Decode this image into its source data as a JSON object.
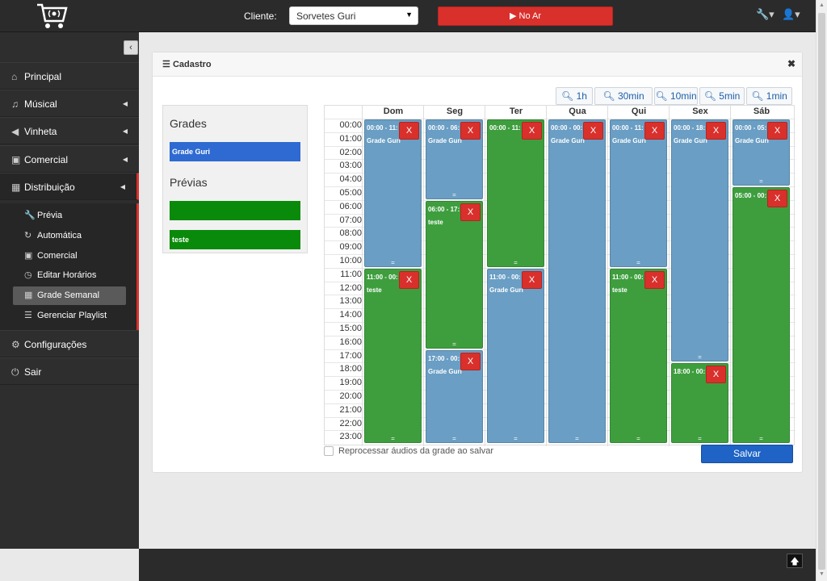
{
  "header": {
    "cliente_label": "Cliente:",
    "cliente_value": "Sorvetes Guri",
    "noar_label": "▶ No Ar"
  },
  "sidebar": {
    "items": [
      {
        "label": "Principal",
        "icon": "home-icon"
      },
      {
        "label": "Músical",
        "icon": "music-icon"
      },
      {
        "label": "Vinheta",
        "icon": "megaphone-icon"
      },
      {
        "label": "Comercial",
        "icon": "money-icon"
      },
      {
        "label": "Distribuição",
        "icon": "calendar-icon"
      },
      {
        "label": "Configurações",
        "icon": "gears-icon"
      },
      {
        "label": "Sair",
        "icon": "power-icon"
      }
    ],
    "subitems": [
      {
        "label": "Prévia",
        "icon": "wrench-icon"
      },
      {
        "label": "Automática",
        "icon": "refresh-icon"
      },
      {
        "label": "Comercial",
        "icon": "money-icon"
      },
      {
        "label": "Editar Horários",
        "icon": "clock-icon"
      },
      {
        "label": "Grade Semanal",
        "icon": "calendar-icon"
      },
      {
        "label": "Gerenciar Playlist",
        "icon": "list-icon"
      }
    ]
  },
  "panel": {
    "title": "Cadastro",
    "zoom_buttons": [
      "1h",
      "30min",
      "10min",
      "5min",
      "1min"
    ],
    "grades_title": "Grades",
    "grades": [
      {
        "label": "Grade Guri",
        "color": "#2e6ad1"
      }
    ],
    "previas_title": "Prévias",
    "previas": [
      {
        "label": "",
        "color": "#0a8a0a"
      },
      {
        "label": "teste",
        "color": "#0a8a0a"
      }
    ],
    "days": [
      "Dom",
      "Seg",
      "Ter",
      "Qua",
      "Qui",
      "Sex",
      "Sáb"
    ],
    "hours": [
      "00:00",
      "01:00",
      "02:00",
      "03:00",
      "04:00",
      "05:00",
      "06:00",
      "07:00",
      "08:00",
      "09:00",
      "10:00",
      "11:00",
      "12:00",
      "13:00",
      "14:00",
      "15:00",
      "16:00",
      "17:00",
      "18:00",
      "19:00",
      "20:00",
      "21:00",
      "22:00",
      "23:00"
    ],
    "blocks": [
      {
        "day": 0,
        "start": 0,
        "end": 11,
        "color": "blue",
        "time": "00:00 - 11:",
        "name": "Grade Guri"
      },
      {
        "day": 0,
        "start": 11,
        "end": 24,
        "color": "green",
        "time": "11:00 - 00:",
        "name": "teste"
      },
      {
        "day": 1,
        "start": 0,
        "end": 6,
        "color": "blue",
        "time": "00:00 - 06:",
        "name": "Grade Guri"
      },
      {
        "day": 1,
        "start": 6,
        "end": 17,
        "color": "green",
        "time": "06:00 - 17:",
        "name": "teste"
      },
      {
        "day": 1,
        "start": 17,
        "end": 24,
        "color": "blue",
        "time": "17:00 - 00:",
        "name": "Grade Guri"
      },
      {
        "day": 2,
        "start": 0,
        "end": 11,
        "color": "green",
        "time": "00:00 - 11:",
        "name": ""
      },
      {
        "day": 2,
        "start": 11,
        "end": 24,
        "color": "blue",
        "time": "11:00 - 00:",
        "name": "Grade Guri"
      },
      {
        "day": 3,
        "start": 0,
        "end": 24,
        "color": "blue",
        "time": "00:00 - 00:",
        "name": "Grade Guri"
      },
      {
        "day": 4,
        "start": 0,
        "end": 11,
        "color": "blue",
        "time": "00:00 - 11:",
        "name": "Grade Guri"
      },
      {
        "day": 4,
        "start": 11,
        "end": 24,
        "color": "green",
        "time": "11:00 - 00:",
        "name": "teste"
      },
      {
        "day": 5,
        "start": 0,
        "end": 18,
        "color": "blue",
        "time": "00:00 - 18:",
        "name": "Grade Guri"
      },
      {
        "day": 5,
        "start": 18,
        "end": 24,
        "color": "green",
        "time": "18:00 - 00:",
        "name": ""
      },
      {
        "day": 6,
        "start": 0,
        "end": 5,
        "color": "blue",
        "time": "00:00 - 05:",
        "name": "Grade Guri"
      },
      {
        "day": 6,
        "start": 5,
        "end": 24,
        "color": "green",
        "time": "05:00 - 00:",
        "name": ""
      }
    ],
    "block_delete_label": "X",
    "reprocess_label": "Reprocessar áudios da grade ao salvar",
    "save_label": "Salvar"
  },
  "colors": {
    "accent": "#d9302c",
    "blue_block": "#6a9ec4",
    "green_block": "#3e9e3e",
    "save": "#1e63c5"
  }
}
